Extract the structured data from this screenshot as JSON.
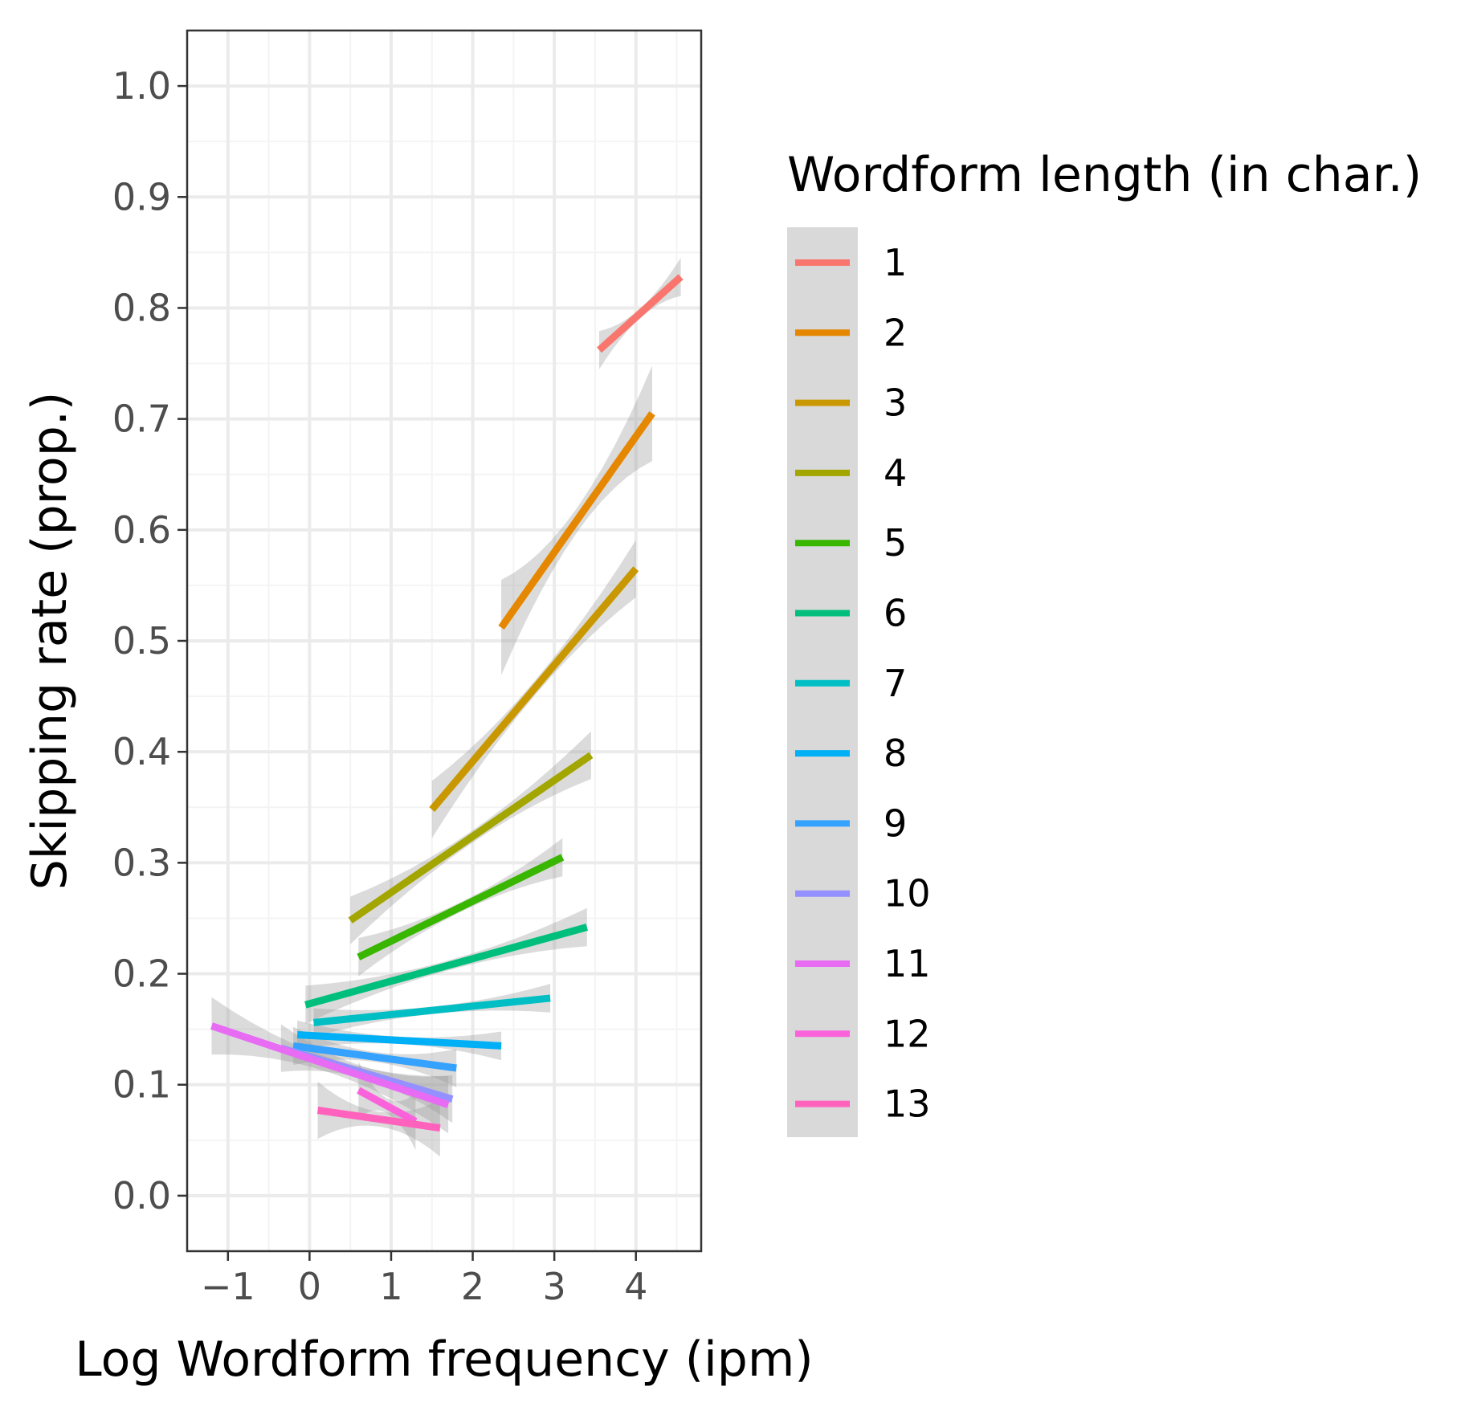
{
  "chart_data": {
    "type": "line",
    "title": "",
    "xlabel": "Log Wordform frequency (ipm)",
    "ylabel": "Skipping rate (prop.)",
    "xlim": [
      -1.5,
      4.8
    ],
    "ylim": [
      -0.05,
      1.05
    ],
    "x_ticks": [
      -1,
      0,
      1,
      2,
      3,
      4
    ],
    "x_tick_labels": [
      "−1",
      "0",
      "1",
      "2",
      "3",
      "4"
    ],
    "y_ticks": [
      0.0,
      0.1,
      0.2,
      0.3,
      0.4,
      0.5,
      0.6,
      0.7,
      0.8,
      0.9,
      1.0
    ],
    "y_tick_labels": [
      "0.0",
      "0.1",
      "0.2",
      "0.3",
      "0.4",
      "0.5",
      "0.6",
      "0.7",
      "0.8",
      "0.9",
      "1.0"
    ],
    "grid": true,
    "confidence_band": true,
    "legend_title": "Wordform length (in char.)",
    "legend_position": "right",
    "series": [
      {
        "name": "1",
        "color": "#F8766D",
        "x": [
          3.55,
          4.55
        ],
        "y": [
          0.762,
          0.828
        ],
        "se": 0.008
      },
      {
        "name": "2",
        "color": "#E58700",
        "x": [
          2.35,
          4.2
        ],
        "y": [
          0.512,
          0.705
        ],
        "se": 0.02
      },
      {
        "name": "3",
        "color": "#C99800",
        "x": [
          1.5,
          4.0
        ],
        "y": [
          0.348,
          0.565
        ],
        "se": 0.012
      },
      {
        "name": "4",
        "color": "#A3A500",
        "x": [
          0.5,
          3.45
        ],
        "y": [
          0.248,
          0.397
        ],
        "se": 0.01
      },
      {
        "name": "5",
        "color": "#39B600",
        "x": [
          0.6,
          3.1
        ],
        "y": [
          0.215,
          0.305
        ],
        "se": 0.008
      },
      {
        "name": "6",
        "color": "#00BF7D",
        "x": [
          -0.05,
          3.4
        ],
        "y": [
          0.172,
          0.242
        ],
        "se": 0.008
      },
      {
        "name": "7",
        "color": "#00BFC4",
        "x": [
          0.05,
          2.95
        ],
        "y": [
          0.156,
          0.178
        ],
        "se": 0.006
      },
      {
        "name": "8",
        "color": "#00B0F6",
        "x": [
          -0.15,
          2.35
        ],
        "y": [
          0.145,
          0.135
        ],
        "se": 0.006
      },
      {
        "name": "9",
        "color": "#35A2FF",
        "x": [
          -0.2,
          1.8
        ],
        "y": [
          0.135,
          0.115
        ],
        "se": 0.008
      },
      {
        "name": "10",
        "color": "#9590FF",
        "x": [
          -0.35,
          1.75
        ],
        "y": [
          0.133,
          0.087
        ],
        "se": 0.01
      },
      {
        "name": "11",
        "color": "#E76BF3",
        "x": [
          -1.2,
          1.7
        ],
        "y": [
          0.153,
          0.082
        ],
        "se": 0.012
      },
      {
        "name": "12",
        "color": "#FA62DB",
        "x": [
          0.6,
          1.3
        ],
        "y": [
          0.095,
          0.067
        ],
        "se": 0.012
      },
      {
        "name": "13",
        "color": "#FF62BC",
        "x": [
          0.1,
          1.6
        ],
        "y": [
          0.077,
          0.061
        ],
        "se": 0.012
      }
    ],
    "colors": {
      "panel_border": "#333333",
      "grid_major": "#ebebeb",
      "grid_minor": "#f4f4f4",
      "band": "#999999",
      "legend_bg": "#d9d9d9"
    }
  }
}
